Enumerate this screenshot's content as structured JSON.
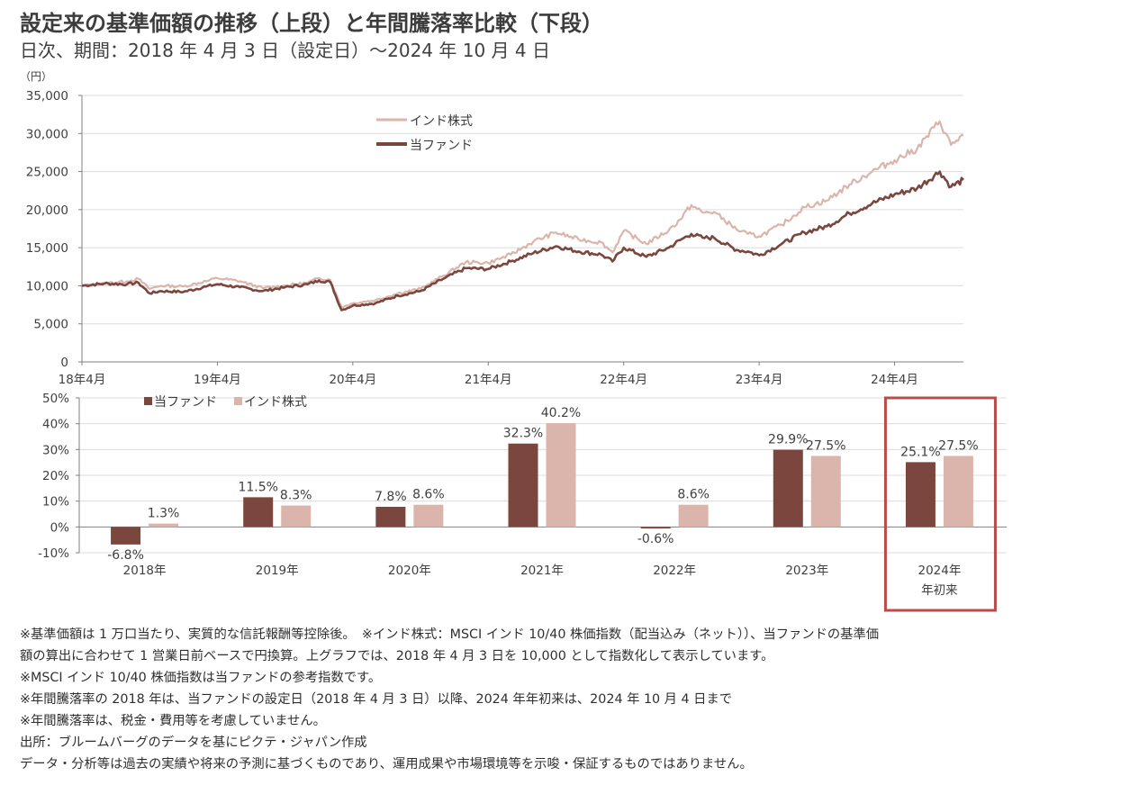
{
  "header": {
    "title": "設定来の基準価額の推移（上段）と年間騰落率比較（下段）",
    "subtitle": "日次、期間：2018 年 4 月 3 日（設定日）～2024 年 10 月 4 日",
    "unit": "（円）"
  },
  "colors": {
    "fund": "#7b463d",
    "index": "#dbb5ab",
    "highlight": "#b84c48",
    "grid": "#dcdcdc",
    "axis": "#808080"
  },
  "chart_data": [
    {
      "type": "line",
      "title": "設定来の基準価額の推移",
      "ylabel": "（円）",
      "ylim": [
        0,
        35000
      ],
      "yticks": [
        0,
        5000,
        10000,
        15000,
        20000,
        25000,
        30000,
        35000
      ],
      "ytick_labels": [
        "0",
        "5,000",
        "10,000",
        "15,000",
        "20,000",
        "25,000",
        "30,000",
        "35,000"
      ],
      "xlim_months": [
        0,
        78.1
      ],
      "xticks_months": [
        0,
        12,
        24,
        36,
        48,
        60,
        72
      ],
      "xtick_labels": [
        "18年4月",
        "19年4月",
        "20年4月",
        "21年4月",
        "22年4月",
        "23年4月",
        "24年4月"
      ],
      "grid": true,
      "legend_position": "top-center",
      "x_unit": "months since 2018-04-03",
      "x": [
        0,
        2,
        4,
        5,
        6,
        7,
        9,
        11,
        12,
        14,
        16,
        18,
        20,
        21,
        22,
        23,
        24,
        26,
        28,
        30,
        32,
        34,
        36,
        38,
        40,
        42,
        44,
        46,
        47,
        48,
        50,
        52,
        53,
        54,
        55,
        56,
        58,
        59,
        60,
        62,
        64,
        66,
        68,
        70,
        72,
        74,
        76,
        77,
        78.1
      ],
      "series": [
        {
          "name": "インド株式",
          "key": "index",
          "values": [
            10000,
            10300,
            10600,
            10900,
            9600,
            10000,
            9900,
            10600,
            11000,
            10600,
            9700,
            10000,
            10400,
            11000,
            10800,
            7200,
            7700,
            8100,
            9000,
            9600,
            11300,
            13100,
            13000,
            14100,
            15800,
            17000,
            16100,
            15700,
            14400,
            17200,
            15500,
            17300,
            18700,
            20600,
            19600,
            19700,
            17400,
            16800,
            16500,
            18000,
            20300,
            21200,
            23300,
            25000,
            26500,
            28000,
            31600,
            28500,
            29800
          ]
        },
        {
          "name": "当ファンド",
          "key": "fund",
          "values": [
            10000,
            10300,
            10200,
            10400,
            9000,
            9300,
            9200,
            9900,
            10200,
            9800,
            9300,
            9800,
            10200,
            10700,
            10500,
            6800,
            7400,
            7700,
            8700,
            9300,
            10900,
            12300,
            12200,
            13200,
            14300,
            15200,
            14500,
            14100,
            13200,
            15000,
            13800,
            15000,
            16000,
            16800,
            16300,
            16300,
            14700,
            14500,
            14000,
            15500,
            17000,
            17800,
            19500,
            20800,
            22000,
            22800,
            25000,
            23000,
            23900
          ]
        }
      ]
    },
    {
      "type": "bar",
      "title": "年間騰落率比較",
      "ylim": [
        -10,
        50
      ],
      "yticks": [
        -10,
        0,
        10,
        20,
        30,
        40,
        50
      ],
      "ytick_labels": [
        "-10%",
        "0%",
        "10%",
        "20%",
        "30%",
        "40%",
        "50%"
      ],
      "categories": [
        "2018年",
        "2019年",
        "2020年",
        "2021年",
        "2022年",
        "2023年",
        "2024年\n年初来"
      ],
      "category_lines": [
        [
          "2018年"
        ],
        [
          "2019年"
        ],
        [
          "2020年"
        ],
        [
          "2021年"
        ],
        [
          "2022年"
        ],
        [
          "2023年"
        ],
        [
          "2024年",
          "年初来"
        ]
      ],
      "legend_position": "top-left",
      "grid": true,
      "highlight_category": "2024年\n年初来",
      "series": [
        {
          "name": "当ファンド",
          "key": "fund",
          "values": [
            -6.8,
            11.5,
            7.8,
            32.3,
            -0.6,
            29.9,
            25.1
          ],
          "labels": [
            "-6.8%",
            "11.5%",
            "7.8%",
            "32.3%",
            "-0.6%",
            "29.9%",
            "25.1%"
          ]
        },
        {
          "name": "インド株式",
          "key": "index",
          "values": [
            1.3,
            8.3,
            8.6,
            40.2,
            8.6,
            27.5,
            27.5
          ],
          "labels": [
            "1.3%",
            "8.3%",
            "8.6%",
            "40.2%",
            "8.6%",
            "27.5%",
            "27.5%"
          ]
        }
      ]
    }
  ],
  "notes": [
    "※基準価額は 1 万口当たり、実質的な信託報酬等控除後。　※インド株式：MSCI インド 10/40 株価指数（配当込み（ネット））、当ファンドの基準価",
    "額の算出に合わせて 1 営業日前ベースで円換算。上グラフでは、2018 年 4 月 3 日を 10,000 として指数化して表示しています。",
    "※MSCI インド 10/40 株価指数は当ファンドの参考指数です。",
    "※年間騰落率の 2018 年は、当ファンドの設定日（2018 年 4 月 3 日）以降、2024 年年初来は、2024 年 10 月 4 日まで",
    "※年間騰落率は、税金・費用等を考慮していません。",
    "出所：ブルームバーグのデータを基にピクテ・ジャパン作成",
    "データ・分析等は過去の実績や将来の予測に基づくものであり、運用成果や市場環境等を示唆・保証するものではありません。"
  ]
}
